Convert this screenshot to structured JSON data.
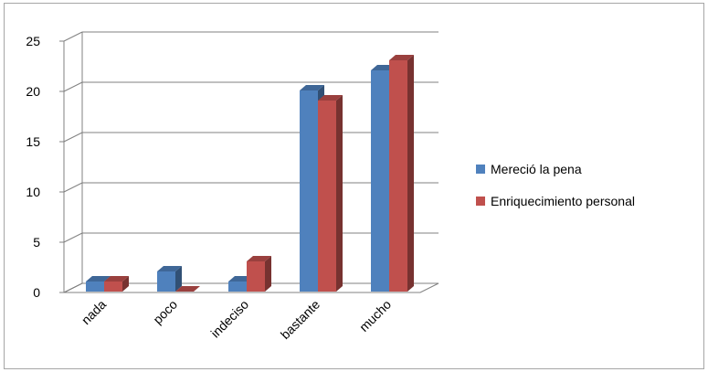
{
  "chart_data": {
    "type": "bar",
    "categories": [
      "nada",
      "poco",
      "indeciso",
      "bastante",
      "mucho"
    ],
    "series": [
      {
        "name": "Mereció la pena",
        "values": [
          1,
          2,
          1,
          20,
          22
        ],
        "color": "#4f81bd"
      },
      {
        "name": "Enriquecimiento personal",
        "values": [
          1,
          0,
          3,
          19,
          23
        ],
        "color": "#c0504d"
      }
    ],
    "yticks": [
      "0",
      "5",
      "10",
      "15",
      "20",
      "25"
    ],
    "ylim": [
      0,
      25
    ],
    "title": "",
    "xlabel": "",
    "ylabel": "",
    "grid": true,
    "legend_position": "right",
    "style": "3d-clustered-column"
  }
}
